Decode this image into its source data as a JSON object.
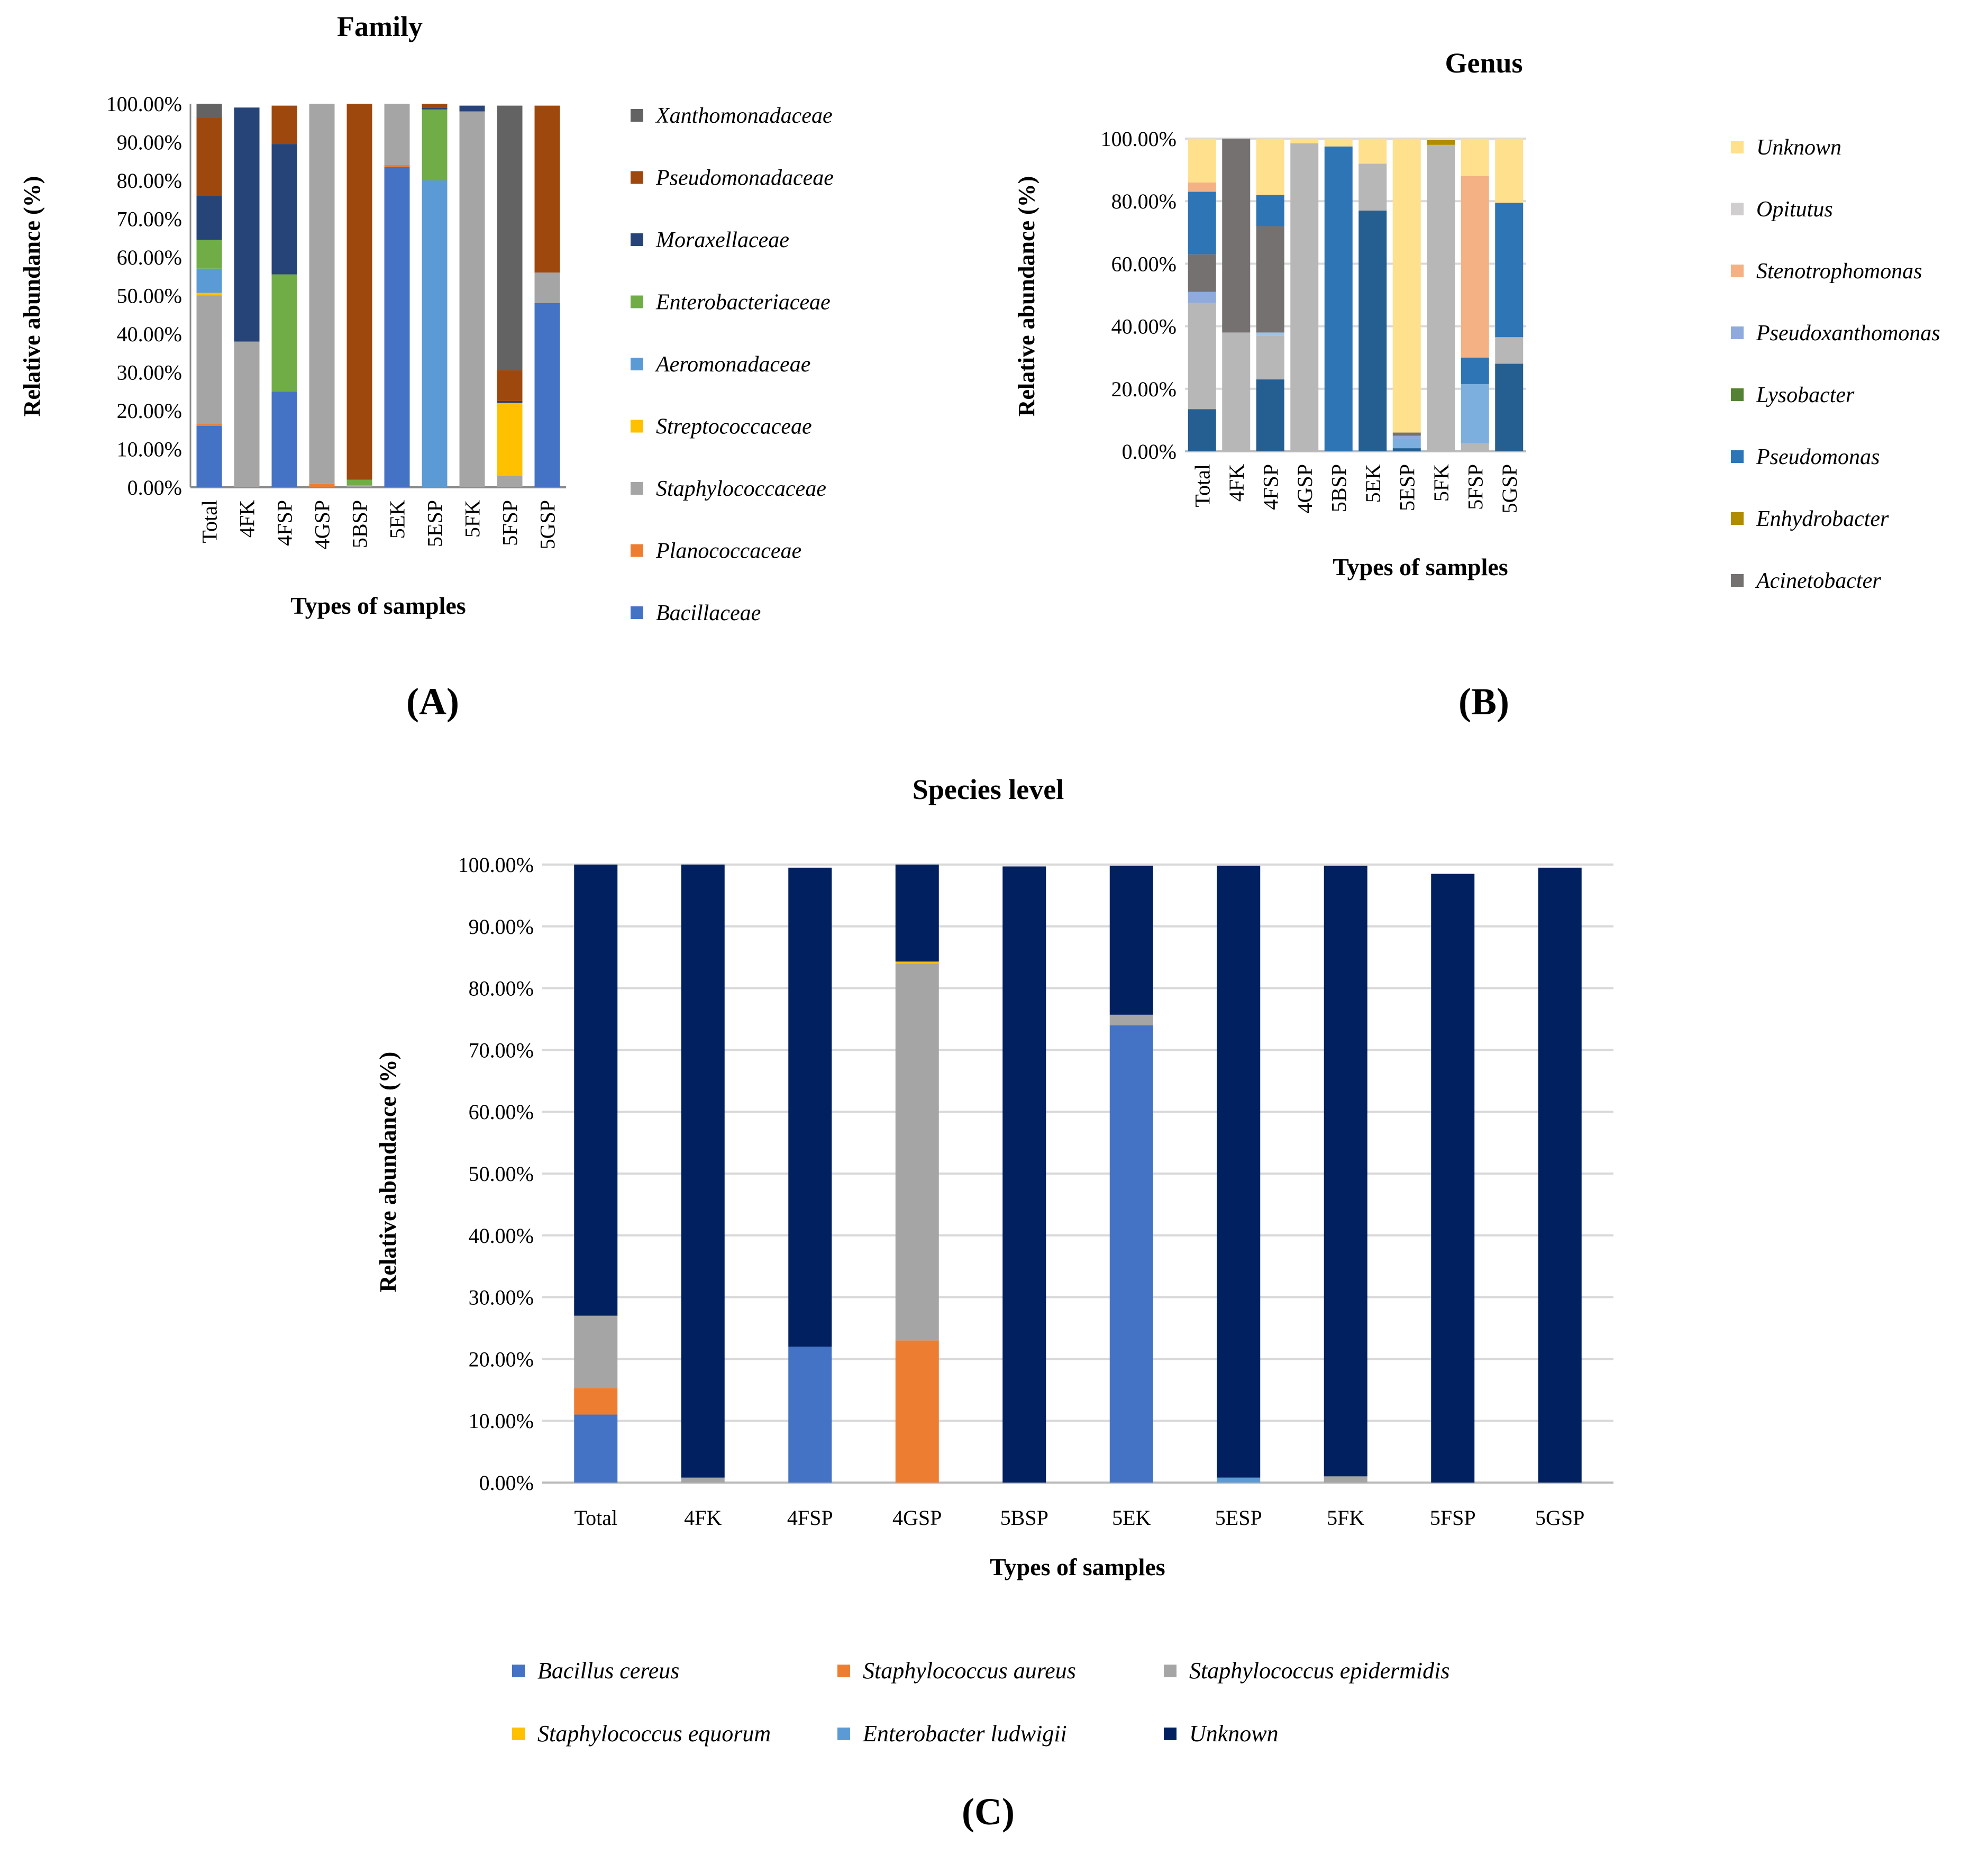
{
  "chart_data": [
    {
      "id": "A",
      "type": "bar",
      "stacked": true,
      "title": "Family",
      "xlabel": "Types of samples",
      "ylabel": "Relative abundance (%)",
      "ylim": [
        0,
        100
      ],
      "yticks": [
        "0.00%",
        "10.00%",
        "20.00%",
        "30.00%",
        "40.00%",
        "50.00%",
        "60.00%",
        "70.00%",
        "80.00%",
        "90.00%",
        "100.00%"
      ],
      "categories": [
        "Total",
        "4FK",
        "4FSP",
        "4GSP",
        "5BSP",
        "5EK",
        "5ESP",
        "5FK",
        "5FSP",
        "5GSP"
      ],
      "panel_label": "(A)",
      "series": [
        {
          "name": "Bacillaceae",
          "color": "#4472C4",
          "values": [
            16,
            0,
            25,
            0,
            0,
            83.5,
            0,
            0,
            0,
            48
          ]
        },
        {
          "name": "Planococcaceae",
          "color": "#ED7D31",
          "values": [
            0.5,
            0,
            0,
            1,
            0,
            0.5,
            0,
            0,
            0,
            0
          ]
        },
        {
          "name": "Staphylococcaceae",
          "color": "#A5A5A5",
          "values": [
            33.5,
            38,
            0,
            99,
            0.5,
            16,
            0,
            98,
            3,
            8
          ]
        },
        {
          "name": "Streptococcaceae",
          "color": "#FFC000",
          "values": [
            0.7,
            0,
            0,
            0,
            0,
            0,
            0,
            0,
            19,
            0
          ]
        },
        {
          "name": "Aeromonadaceae",
          "color": "#5B9BD5",
          "values": [
            6.3,
            0,
            0,
            0,
            0,
            0,
            80,
            0,
            0,
            0
          ]
        },
        {
          "name": "Enterobacteriaceae",
          "color": "#70AD47",
          "values": [
            7.5,
            0,
            30.5,
            0,
            1.5,
            0,
            18.5,
            0,
            0,
            0
          ]
        },
        {
          "name": "Moraxellaceae",
          "color": "#264478",
          "values": [
            11.5,
            61,
            34,
            0,
            0,
            0,
            0.5,
            1.5,
            0.5,
            0
          ]
        },
        {
          "name": "Pseudomonadaceae",
          "color": "#9E480E",
          "values": [
            20.5,
            0,
            10,
            0,
            98,
            0,
            1,
            0,
            8,
            43.5
          ]
        },
        {
          "name": "Xanthomonadaceae",
          "color": "#636363",
          "values": [
            3.5,
            0,
            0,
            0,
            0,
            0,
            0,
            0,
            69,
            0
          ]
        }
      ]
    },
    {
      "id": "B",
      "type": "bar",
      "stacked": true,
      "title": "Genus",
      "xlabel": "Types of samples",
      "ylabel": "Relative abundance (%)",
      "ylim": [
        0,
        100
      ],
      "yticks": [
        "0.00%",
        "20.00%",
        "40.00%",
        "60.00%",
        "80.00%",
        "100.00%"
      ],
      "categories": [
        "Total",
        "4FK",
        "4FSP",
        "4GSP",
        "5BSP",
        "5EK",
        "5ESP",
        "5FK",
        "5FSP",
        "5GSP"
      ],
      "panel_label": "(B)",
      "series": [
        {
          "name": "Pseudomonas (lower)",
          "legend": false,
          "color": "#255E91",
          "values": [
            13.5,
            0,
            23,
            0,
            0,
            77,
            1,
            0,
            0,
            28
          ]
        },
        {
          "name": "Staphylococcus",
          "legend": false,
          "color": "#B7B7B7",
          "values": [
            34,
            38,
            14,
            98.5,
            0,
            15,
            0,
            98,
            2.5,
            8.5
          ]
        },
        {
          "name": "Pseudoxanthomonas (low)",
          "legend": false,
          "color": "#7CAFDD",
          "values": [
            0,
            0,
            0,
            0,
            0,
            0,
            3,
            0,
            19,
            0
          ]
        },
        {
          "name": "Pseudoxanthomonas",
          "color": "#8FAADC",
          "values": [
            3.5,
            0,
            0,
            0,
            0,
            0,
            1,
            0,
            0,
            0
          ]
        },
        {
          "name": "Stenotrophomonas (low)",
          "legend": false,
          "color": "#9DC3E6",
          "values": [
            0,
            0,
            1,
            0,
            0,
            0,
            0,
            0,
            0,
            0
          ]
        },
        {
          "name": "Pseudomonas",
          "color": "#2E75B6",
          "values": [
            0,
            0,
            0,
            0,
            97.5,
            0,
            0,
            0,
            8.5,
            0
          ]
        },
        {
          "name": "Acinetobacter",
          "color": "#767171",
          "values": [
            12,
            62,
            34,
            0,
            0,
            0,
            1,
            0,
            0,
            0
          ]
        },
        {
          "name": "Pseudomonas (upper)",
          "legend": false,
          "color": "#2E75B6",
          "values": [
            20,
            0,
            10,
            0,
            0,
            0,
            0,
            0,
            0,
            43
          ]
        },
        {
          "name": "Enhydrobacter",
          "color": "#B08C00",
          "values": [
            0,
            0,
            0,
            0,
            0,
            0,
            0,
            1.5,
            0,
            0
          ]
        },
        {
          "name": "Lysobacter",
          "color": "#548235",
          "values": [
            0,
            0,
            0,
            0,
            0,
            0,
            0,
            0,
            0,
            0
          ]
        },
        {
          "name": "Stenotrophomonas",
          "color": "#F4B183",
          "values": [
            3,
            0,
            0,
            0,
            0,
            0,
            0,
            0,
            58,
            0
          ]
        },
        {
          "name": "Opitutus",
          "color": "#D0CECE",
          "values": [
            0,
            0,
            0,
            0,
            0,
            0,
            0,
            0,
            0,
            0
          ]
        },
        {
          "name": "Unknown",
          "color": "#FFE08C",
          "values": [
            14,
            0,
            18,
            1.5,
            2.5,
            8,
            94,
            0.5,
            12,
            20.5
          ]
        }
      ],
      "legend_order": [
        "Unknown",
        "Opitutus",
        "Stenotrophomonas",
        "Pseudoxanthomonas",
        "Lysobacter",
        "Pseudomonas",
        "Enhydrobacter",
        "Acinetobacter"
      ]
    },
    {
      "id": "C",
      "type": "bar",
      "stacked": true,
      "title": "Species level",
      "xlabel": "Types of samples",
      "ylabel": "Relative abundance (%)",
      "ylim": [
        0,
        100
      ],
      "yticks": [
        "0.00%",
        "10.00%",
        "20.00%",
        "30.00%",
        "40.00%",
        "50.00%",
        "60.00%",
        "70.00%",
        "80.00%",
        "90.00%",
        "100.00%"
      ],
      "categories": [
        "Total",
        "4FK",
        "4FSP",
        "4GSP",
        "5BSP",
        "5EK",
        "5ESP",
        "5FK",
        "5FSP",
        "5GSP"
      ],
      "panel_label": "(C)",
      "series": [
        {
          "name": "Bacillus cereus",
          "color": "#4472C4",
          "values": [
            11,
            0,
            22,
            0,
            0,
            74,
            0,
            0,
            0,
            0
          ]
        },
        {
          "name": "Staphylococcus aureus",
          "color": "#ED7D31",
          "values": [
            4.3,
            0,
            0,
            23,
            0,
            0,
            0,
            0,
            0,
            0
          ]
        },
        {
          "name": "Staphylococcus epidermidis",
          "color": "#A5A5A5",
          "values": [
            11.7,
            0.8,
            0,
            61,
            0,
            1.7,
            0,
            1,
            0,
            0
          ]
        },
        {
          "name": "Staphylococcus equorum",
          "color": "#FFC000",
          "values": [
            0,
            0,
            0,
            0.3,
            0,
            0,
            0,
            0,
            0,
            0
          ]
        },
        {
          "name": "Enterobacter ludwigii",
          "color": "#5B9BD5",
          "values": [
            0,
            0,
            0,
            0,
            0,
            0,
            0.8,
            0,
            0,
            0
          ]
        },
        {
          "name": "Unknown",
          "color": "#002060",
          "values": [
            73,
            99.2,
            77.5,
            15.7,
            99.7,
            24.1,
            99,
            98.8,
            98.5,
            99.5
          ]
        }
      ]
    }
  ]
}
